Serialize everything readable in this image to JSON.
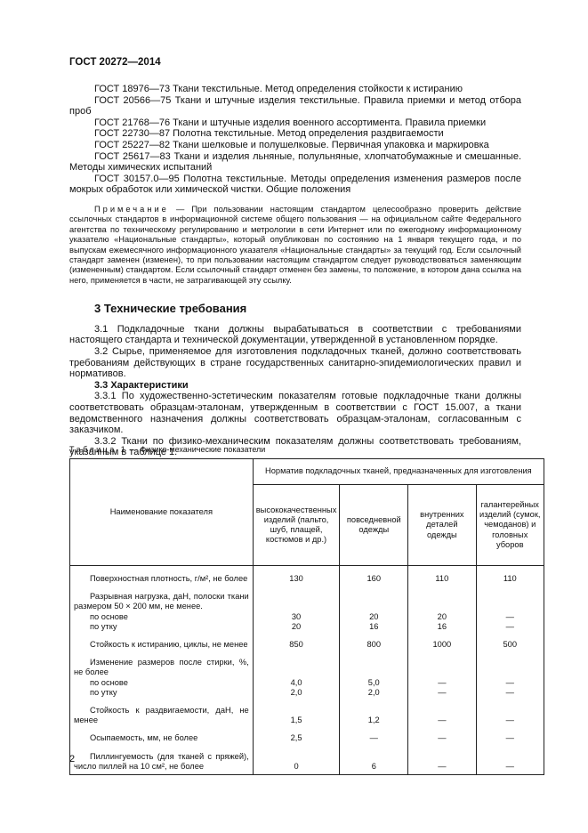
{
  "header": {
    "title": "ГОСТ 20272—2014"
  },
  "references": [
    "ГОСТ 18976—73 Ткани текстильные. Метод определения стойкости к истиранию",
    "ГОСТ 20566—75 Ткани и штучные изделия текстильные. Правила приемки и метод отбора проб",
    "ГОСТ 21768—76 Ткани и штучные изделия военного ассортимента. Правила приемки",
    "ГОСТ 22730—87 Полотна текстильные. Метод определения раздвигаемости",
    "ГОСТ 25227—82 Ткани шелковые и полушелковые. Первичная упаковка и маркировка",
    "ГОСТ 25617—83 Ткани и изделия льняные, полульняные, хлопчатобумажные и смешанные. Методы химических испытаний",
    "ГОСТ 30157.0—95 Полотна текстильные. Методы определения изменения размеров после мокрых обработок или химической чистки. Общие положения"
  ],
  "note": {
    "label": "Примечание",
    "text": "— При пользовании настоящим стандартом целесообразно проверить действие ссылочных стандартов в информационной системе общего пользования — на официальном сайте Федерального агентства по техническому регулированию и метрологии в сети Интернет или по ежегодному информационному указателю «Национальные стандарты», который опубликован по состоянию на 1 января текущего года, и по выпускам ежемесячного информационного указателя «Национальные стандарты» за текущий год. Если ссылочный стандарт заменен (изменен), то при пользовании настоящим стандартом следует руководствоваться заменяющим (измененным) стандартом. Если ссылочный стандарт отменен без замены, то положение, в котором дана ссылка на него, применяется в части, не затрагивающей эту ссылку."
  },
  "section": {
    "title": "3 Технические требования",
    "p1": "3.1 Подкладочные ткани должны вырабатываться в соответствии с требованиями настоящего стандарта и технической документации, утвержденной в установленном порядке.",
    "p2": "3.2 Сырье, применяемое для изготовления подкладочных тканей, должно соответствовать требованиям действующих в стране государственных санитарно-эпидемиологических правил и нормативов.",
    "subtitle": "3.3 Характеристики",
    "p3": "3.3.1 По художественно-эстетическим показателям готовые подкладочные ткани должны соответствовать образцам-эталонам, утвержденным в соответствии с ГОСТ 15.007, а ткани ведомственного назначения должны соответствовать образцам-эталонам, согласованным с заказчиком.",
    "p4": "3.3.2 Ткани по физико-механическим показателям должны соответствовать требованиям, указанным в таблице 1."
  },
  "table": {
    "label": "Таблица 1",
    "title": "— Физико-механические показатели",
    "name_header": "Наименование показателя",
    "group_header": "Норматив подкладочных тканей, предназначенных для изготовления",
    "columns": [
      "высококачественных изделий (пальто, шуб, плащей, костюмов и др.)",
      "повседневной одежды",
      "внутренних деталей одежды",
      "галантерейных изделий (сумок, чемоданов) и головных уборов"
    ],
    "rows": [
      {
        "name": "Поверхностная плотность, г/м², не более",
        "values": [
          "130",
          "160",
          "110",
          "110"
        ]
      },
      {
        "name": "Разрывная нагрузка, даН, полоски ткани размером 50 × 200 мм, не менее.",
        "items": [
          {
            "name": "по основе",
            "values": [
              "30",
              "20",
              "20",
              "—"
            ]
          },
          {
            "name": "по утку",
            "values": [
              "20",
              "16",
              "16",
              "—"
            ]
          }
        ]
      },
      {
        "name": "Стойкость к истиранию, циклы, не менее",
        "values": [
          "850",
          "800",
          "1000",
          "500"
        ]
      },
      {
        "name": "Изменение размеров после стирки, %, не более",
        "items": [
          {
            "name": "по основе",
            "values": [
              "4,0",
              "5,0",
              "—",
              "—"
            ]
          },
          {
            "name": "по утку",
            "values": [
              "2,0",
              "2,0",
              "—",
              "—"
            ]
          }
        ]
      },
      {
        "name": "Стойкость к раздвигаемости, даН, не менее",
        "values": [
          "1,5",
          "1,2",
          "—",
          "—"
        ]
      },
      {
        "name": "Осыпаемость, мм, не более",
        "values": [
          "2,5",
          "—",
          "—",
          "—"
        ]
      },
      {
        "name": "Пиллингуемость (для тканей с пряжей), число пиллей на 10 см², не более",
        "values": [
          "0",
          "6",
          "—",
          "—"
        ]
      }
    ]
  },
  "footer": {
    "page": "2"
  }
}
